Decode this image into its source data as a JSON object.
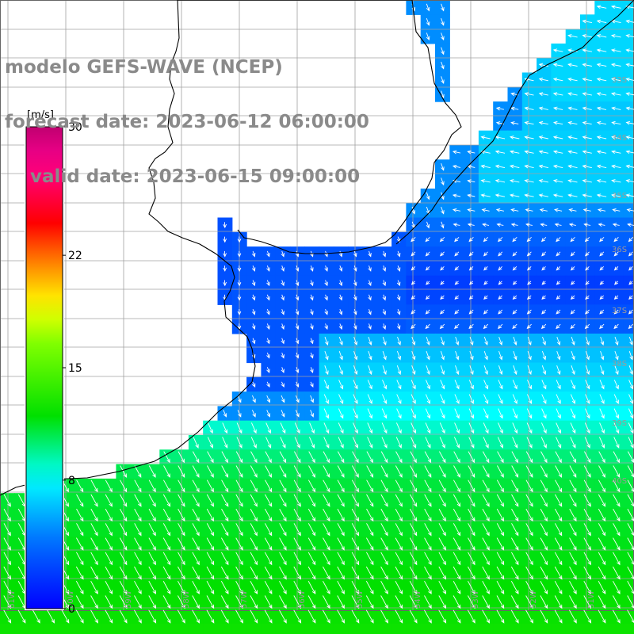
{
  "title": {
    "line1": "modelo GEFS-WAVE (NCEP)",
    "line2": "forecast date: 2023-06-12 06:00:00",
    "line3": "    valid date: 2023-06-15 09:00:00"
  },
  "colorbar": {
    "unit": "[m/s]",
    "ticks": [
      "30",
      "22",
      "15",
      "8",
      "0"
    ],
    "tick_values": [
      30,
      22,
      15,
      8,
      0
    ],
    "min": 0,
    "max": 30,
    "colors": [
      "#0000ff",
      "#0070ff",
      "#00ffff",
      "#00e000",
      "#80ff00",
      "#ffff00",
      "#ff8000",
      "#ff0000",
      "#ff0090",
      "#c00070"
    ]
  },
  "map": {
    "lat_labels": [
      "33S",
      "34S",
      "35S",
      "36S",
      "37S",
      "38S",
      "39S",
      "40S"
    ],
    "lon_labels": [
      "61W",
      "60W",
      "59W",
      "58W",
      "57W",
      "56W",
      "55W",
      "54W",
      "53W",
      "52W",
      "51W"
    ],
    "coast_color": "#000000",
    "land_color": "#ffffff",
    "grid_color": "#a0a0a0",
    "arrow_color": "#ffffff"
  }
}
